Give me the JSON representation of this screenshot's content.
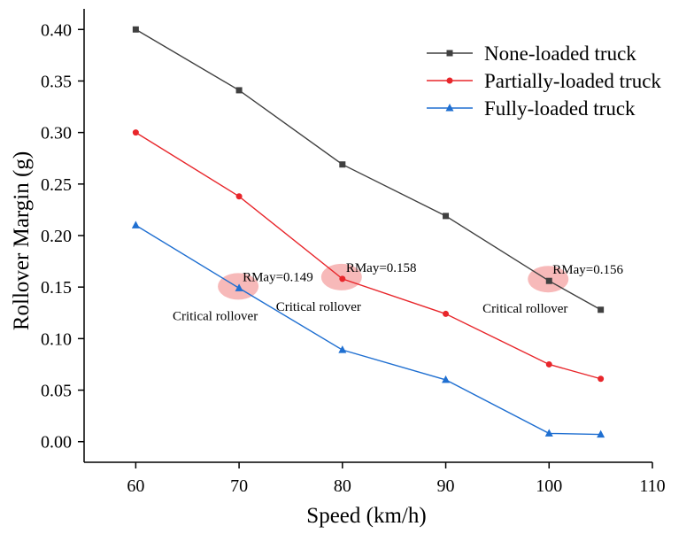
{
  "chart_data": {
    "type": "line",
    "xlabel": "Speed (km/h)",
    "ylabel": "Rollover Margin (g)",
    "xlim": [
      55,
      110
    ],
    "ylim": [
      -0.02,
      0.42
    ],
    "x_ticks": [
      "60",
      "70",
      "80",
      "90",
      "100",
      "110"
    ],
    "y_ticks": [
      "0.00",
      "0.05",
      "0.10",
      "0.15",
      "0.20",
      "0.25",
      "0.30",
      "0.35",
      "0.40"
    ],
    "x": [
      60,
      70,
      80,
      90,
      100,
      105
    ],
    "series": [
      {
        "name": "None-loaded truck",
        "values": [
          0.4,
          0.341,
          0.269,
          0.219,
          0.156,
          0.128
        ],
        "color": "#404040",
        "marker": "square"
      },
      {
        "name": "Partially-loaded truck",
        "values": [
          0.3,
          0.238,
          0.158,
          0.124,
          0.075,
          0.061
        ],
        "color": "#e8262b",
        "marker": "circle"
      },
      {
        "name": "Fully-loaded truck",
        "values": [
          0.21,
          0.149,
          0.089,
          0.06,
          0.008,
          0.007
        ],
        "color": "#1f6fd1",
        "marker": "triangle"
      }
    ],
    "legend_position": "top-right",
    "grid": false,
    "annotations": [
      {
        "x": 70,
        "y": 0.149,
        "label": "RMay=0.149",
        "note": "Critical rollover"
      },
      {
        "x": 80,
        "y": 0.158,
        "label": "RMay=0.158",
        "note": "Critical rollover"
      },
      {
        "x": 100,
        "y": 0.156,
        "label": "RMay=0.156",
        "note": "Critical rollover"
      }
    ],
    "highlight_color": "#f08080"
  }
}
